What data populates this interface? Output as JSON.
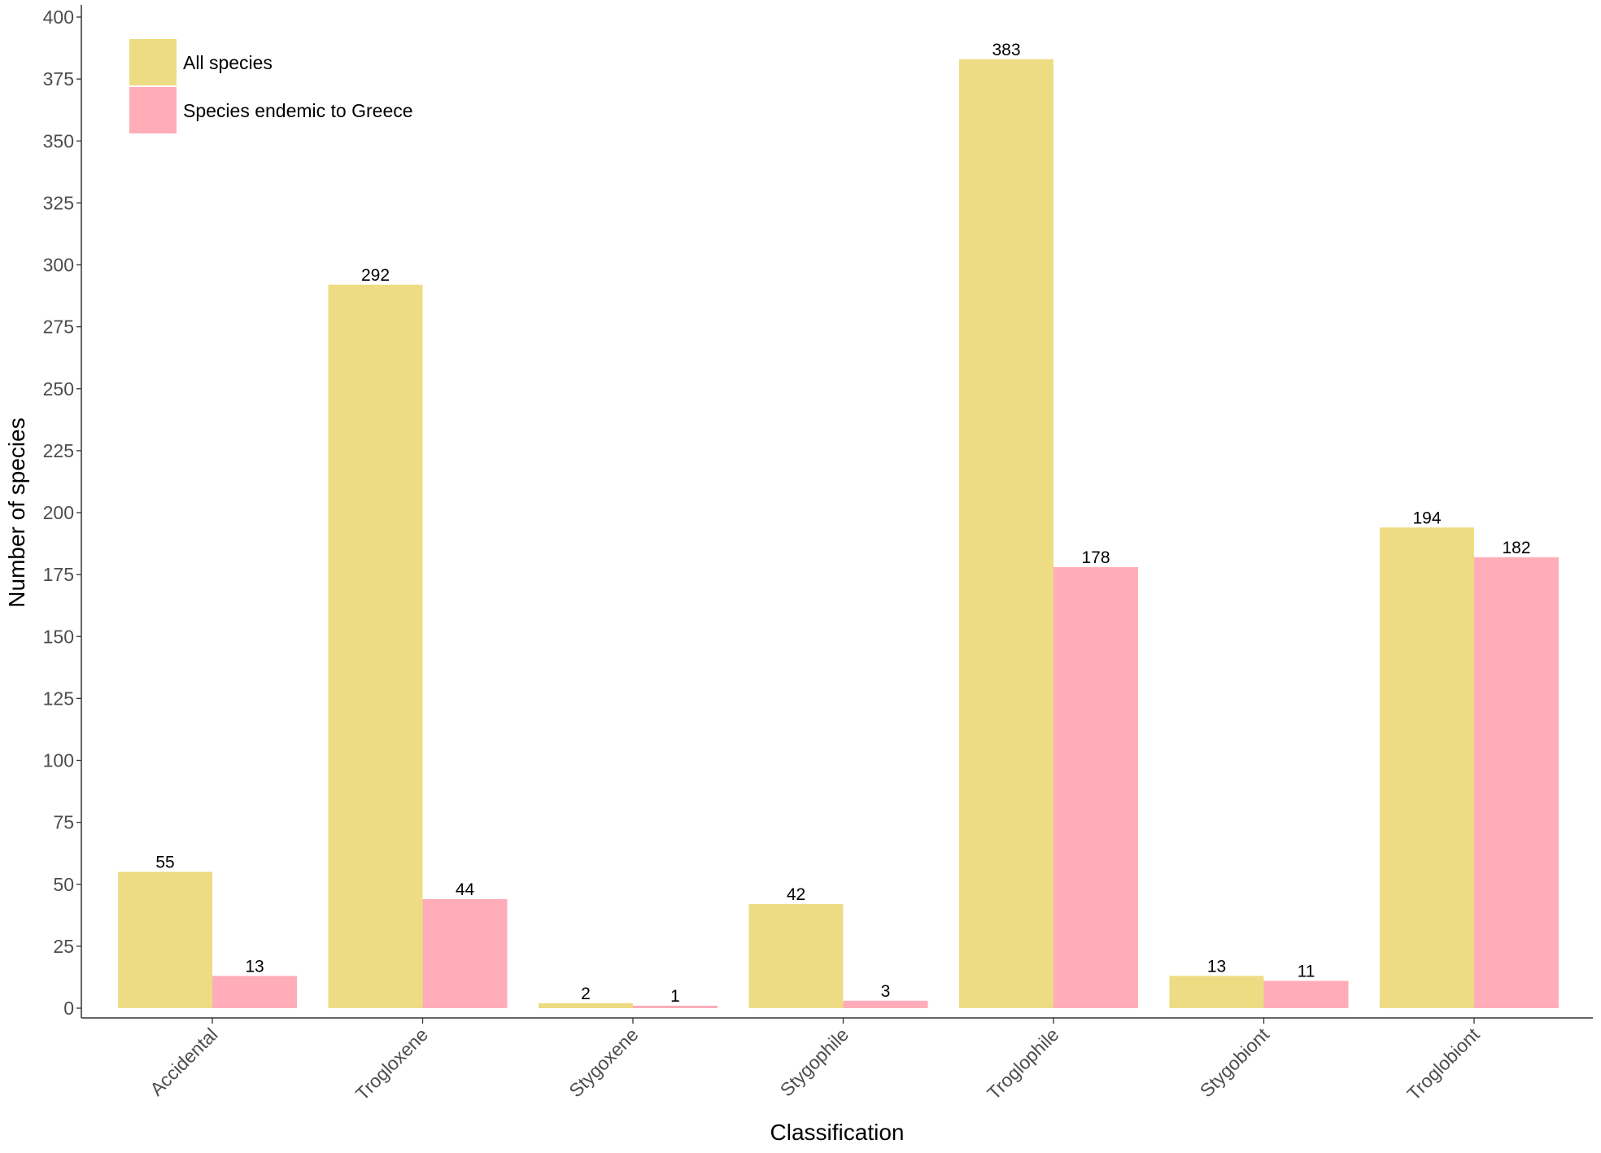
{
  "chart_data": {
    "type": "bar",
    "title": "",
    "xlabel": "Classification",
    "ylabel": "Number of species",
    "ylim": [
      0,
      400
    ],
    "yticks": [
      0,
      25,
      50,
      75,
      100,
      125,
      150,
      175,
      200,
      225,
      250,
      275,
      300,
      325,
      350,
      375,
      400
    ],
    "grid": false,
    "legend_position": "top-left",
    "categories": [
      "Accidental",
      "Trogloxene",
      "Stygoxene",
      "Stygophile",
      "Troglophile",
      "Stygobiont",
      "Troglobiont"
    ],
    "series": [
      {
        "name": "All species",
        "color": "#EDDC83",
        "values": [
          55,
          292,
          2,
          42,
          383,
          13,
          194
        ]
      },
      {
        "name": "Species endemic to Greece",
        "color": "#FFADB9",
        "values": [
          13,
          44,
          1,
          3,
          178,
          11,
          182
        ]
      }
    ]
  }
}
